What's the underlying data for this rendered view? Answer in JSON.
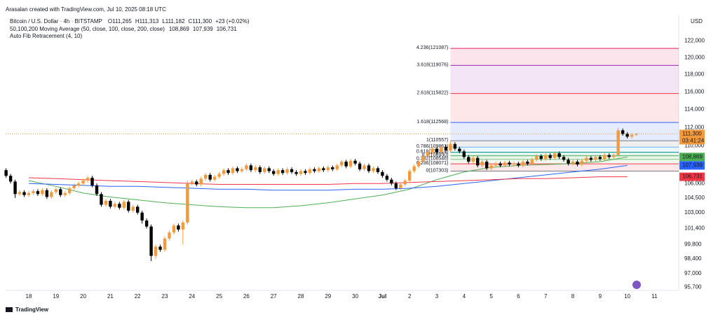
{
  "header": {
    "credit": "Arasalan created with TradingView.com, Jul 10, 2025 08:18 UTC",
    "symbol": "Bitcoin / U.S. Dollar · 4h · BITSTAMP",
    "ohlc": [
      "O111,265",
      "H111,313",
      "L111,182",
      "C111,300",
      "+23 (+0.02%)"
    ],
    "ma_legend": "50,100,200 Moving Average (50, close, 100, close, 200, close)",
    "fib_legend": "Auto Fib Retracement (4, 10)",
    "logo": "TradingView"
  },
  "chart_data": {
    "type": "candlestick",
    "currency": "USD",
    "log_scale": true,
    "grid": false,
    "up_color": "#f59a3b",
    "down_color": "#000000",
    "categories": [
      "18",
      "19",
      "20",
      "21",
      "22",
      "23",
      "24",
      "25",
      "26",
      "27",
      "28",
      "29",
      "30",
      "Jul",
      "2",
      "3",
      "4",
      "5",
      "6",
      "7",
      "8",
      "9",
      "10",
      "11"
    ],
    "ylim": [
      95400,
      125000
    ],
    "yticks": [
      {
        "value": 122000,
        "label": "122,000"
      },
      {
        "value": 120000,
        "label": "120,000"
      },
      {
        "value": 118000,
        "label": "118,000"
      },
      {
        "value": 116000,
        "label": "116,000"
      },
      {
        "value": 114000,
        "label": "114,000"
      },
      {
        "value": 112000,
        "label": "112,000"
      },
      {
        "value": 110000,
        "label": "110,000"
      },
      {
        "value": 106000,
        "label": "106,000"
      },
      {
        "value": 104500,
        "label": "104,500"
      },
      {
        "value": 103000,
        "label": "103,000"
      },
      {
        "value": 101400,
        "label": "101,400"
      },
      {
        "value": 99800,
        "label": "99,800"
      },
      {
        "value": 98400,
        "label": "98,400"
      },
      {
        "value": 97000,
        "label": "97,000"
      },
      {
        "value": 95700,
        "label": "95,700"
      }
    ],
    "last_price": {
      "value": 111300,
      "label": "111,300",
      "countdown": "03:41:24",
      "color": "#f59a3b"
    },
    "candles": {
      "open": [
        107400,
        106800,
        106200,
        104900,
        105100,
        104800,
        105000,
        105200,
        104900,
        105300,
        104600,
        105100,
        105400,
        104800,
        105000,
        105500,
        105800,
        106000,
        106300,
        106600,
        105800,
        104900,
        103800,
        104200,
        103600,
        103900,
        103500,
        104100,
        103200,
        103600,
        103000,
        102200,
        101600,
        98700,
        99600,
        99300,
        100400,
        101000,
        101700,
        101300,
        102000,
        106000,
        106200,
        105900,
        106500,
        106900,
        106400,
        106700,
        107000,
        107400,
        107100,
        107600,
        107300,
        107500,
        107900,
        107400,
        107700,
        107200,
        107600,
        107300,
        107000,
        107400,
        107100,
        107500,
        107200,
        107000,
        107300,
        107100,
        107500,
        107300,
        107600,
        107400,
        107700,
        107500,
        107900,
        108300,
        107800,
        108400,
        108100,
        107500,
        107900,
        107300,
        107600,
        107200,
        106800,
        106400,
        106000,
        105500,
        105900,
        106300,
        107300,
        107800,
        108300,
        108900,
        109300,
        109700,
        109300,
        109900,
        109500,
        110200,
        109700,
        109400,
        108800,
        108300,
        108700,
        107900,
        108300,
        107600,
        107900,
        108100,
        107900,
        108200,
        108000,
        108100,
        107900,
        108300,
        108100,
        108500,
        108900,
        108600,
        109000,
        108700,
        109200,
        108800,
        108500,
        108100,
        108300,
        108000,
        108400,
        108700,
        108500,
        108800,
        108600,
        109000,
        108800,
        109000,
        111700,
        111300,
        111000,
        111200
      ],
      "high": [
        107600,
        107000,
        106400,
        105300,
        105300,
        105200,
        105400,
        105400,
        105500,
        105500,
        105300,
        105600,
        105600,
        105200,
        105700,
        106000,
        106200,
        106500,
        106800,
        106800,
        106000,
        105100,
        104400,
        104400,
        104100,
        104100,
        104300,
        104300,
        103800,
        103800,
        103200,
        102400,
        101800,
        99800,
        99800,
        100600,
        101200,
        101900,
        101900,
        102200,
        106300,
        106400,
        106400,
        106700,
        107100,
        107100,
        106900,
        107200,
        107600,
        107600,
        107800,
        107800,
        107700,
        108100,
        108100,
        107900,
        107900,
        107800,
        107800,
        107500,
        107600,
        107600,
        107700,
        107700,
        107400,
        107500,
        107500,
        107700,
        107700,
        107800,
        107800,
        107900,
        107900,
        108100,
        108500,
        108500,
        108600,
        108600,
        108300,
        108100,
        108100,
        107800,
        107800,
        107400,
        107000,
        106600,
        106200,
        106100,
        106500,
        107500,
        108000,
        108500,
        109100,
        109500,
        109900,
        109900,
        110100,
        110100,
        110500,
        110400,
        109900,
        109600,
        109000,
        108900,
        108900,
        108500,
        108500,
        108100,
        108300,
        108300,
        108400,
        108400,
        108300,
        108300,
        108500,
        108500,
        108700,
        109100,
        109100,
        109200,
        109200,
        109400,
        109400,
        109000,
        108700,
        108500,
        108500,
        108600,
        108900,
        108900,
        109000,
        109000,
        109200,
        109200,
        109200,
        112000,
        111900,
        111500,
        111400,
        111400
      ],
      "low": [
        106600,
        106000,
        104500,
        104700,
        104600,
        104600,
        104800,
        104700,
        104700,
        104400,
        104400,
        104900,
        104600,
        104600,
        104800,
        105300,
        105600,
        105800,
        106100,
        105600,
        104700,
        103600,
        103600,
        103400,
        103400,
        103300,
        103300,
        103000,
        103000,
        102800,
        101900,
        101400,
        98200,
        98400,
        99100,
        99100,
        100200,
        100800,
        101100,
        99800,
        101800,
        105800,
        105700,
        105700,
        106300,
        106200,
        106200,
        106500,
        106800,
        106900,
        106900,
        107100,
        107100,
        107300,
        107200,
        107200,
        107000,
        107000,
        107100,
        106800,
        106800,
        106900,
        106900,
        107000,
        106800,
        106800,
        106900,
        106900,
        107100,
        107100,
        107200,
        107200,
        107300,
        107300,
        107700,
        107600,
        107600,
        107900,
        107300,
        107300,
        107100,
        107100,
        107000,
        106600,
        106200,
        105800,
        105300,
        105300,
        105700,
        106100,
        107100,
        107600,
        108100,
        108700,
        109100,
        109100,
        109100,
        109300,
        109300,
        109500,
        109200,
        108600,
        108100,
        108100,
        107700,
        107700,
        107400,
        107400,
        107700,
        107700,
        107700,
        107800,
        107800,
        107700,
        107700,
        107900,
        107900,
        108300,
        108400,
        108400,
        108500,
        108500,
        108600,
        108300,
        107900,
        107900,
        107800,
        107800,
        108200,
        108300,
        108300,
        108400,
        108400,
        108600,
        108600,
        108800,
        111100,
        110800,
        110800,
        111100
      ],
      "close": [
        106800,
        106200,
        104900,
        105100,
        104800,
        105000,
        105200,
        104900,
        105300,
        104600,
        105100,
        105400,
        104800,
        105000,
        105500,
        105800,
        106000,
        106300,
        106600,
        105800,
        104900,
        103800,
        104200,
        103600,
        103900,
        103500,
        104100,
        103200,
        103600,
        103000,
        102200,
        101600,
        98700,
        99600,
        99300,
        100400,
        101000,
        101700,
        101300,
        102000,
        106000,
        106200,
        105900,
        106500,
        106900,
        106400,
        106700,
        107000,
        107400,
        107100,
        107600,
        107300,
        107500,
        107900,
        107400,
        107700,
        107200,
        107600,
        107300,
        107000,
        107400,
        107100,
        107500,
        107200,
        107000,
        107300,
        107100,
        107500,
        107300,
        107600,
        107400,
        107700,
        107500,
        107900,
        108300,
        107800,
        108400,
        108100,
        107500,
        107900,
        107300,
        107600,
        107200,
        106800,
        106400,
        106000,
        105500,
        105900,
        106300,
        107300,
        107800,
        108300,
        108900,
        109300,
        109700,
        109300,
        109900,
        109500,
        110200,
        109700,
        109400,
        108800,
        108300,
        108700,
        107900,
        108300,
        107600,
        107900,
        108100,
        107900,
        108200,
        108000,
        108100,
        107900,
        108300,
        108100,
        108500,
        108900,
        108600,
        109000,
        108700,
        109200,
        108800,
        108500,
        108100,
        108300,
        108000,
        108400,
        108700,
        108500,
        108800,
        108600,
        109000,
        108800,
        109000,
        111700,
        111300,
        111000,
        111200,
        111300
      ]
    },
    "series": [
      {
        "name": "50",
        "color": "#4caf50",
        "last_label": "108,869",
        "values": [
          106300,
          105700,
          105000,
          104600,
          104300,
          104000,
          103800,
          103600,
          103500,
          103500,
          103700,
          104000,
          104400,
          104800,
          105400,
          106400,
          107200,
          107700,
          107900,
          108000,
          108100,
          108300,
          108800,
          null
        ]
      },
      {
        "name": "100",
        "color": "#2962ff",
        "last_label": "107,939",
        "values": [
          106000,
          105900,
          105800,
          105700,
          105700,
          105600,
          105500,
          105400,
          105400,
          105300,
          105300,
          105300,
          105400,
          105400,
          105500,
          105700,
          106000,
          106300,
          106600,
          106900,
          107200,
          107500,
          107900,
          null
        ]
      },
      {
        "name": "200",
        "color": "#f23645",
        "last_label": "106,731",
        "values": [
          106600,
          106500,
          106400,
          106300,
          106200,
          106100,
          106000,
          105900,
          105900,
          105900,
          105900,
          105900,
          106000,
          106000,
          106100,
          106200,
          106300,
          106400,
          106500,
          106500,
          106600,
          106700,
          106700,
          null
        ]
      }
    ],
    "fib": {
      "levels": [
        {
          "value": 121087,
          "label": "4.236(121087)",
          "color": "#e91e63"
        },
        {
          "value": 119076,
          "label": "3.618(119076)",
          "color": "#9c27b0"
        },
        {
          "value": 115822,
          "label": "2.618(115822)",
          "color": "#f23645"
        },
        {
          "value": 112568,
          "label": "1.618(112568)",
          "color": "#2962ff"
        },
        {
          "value": 110557,
          "label": "1(110557)",
          "color": "#787b86"
        },
        {
          "value": 109861,
          "label": "0.786(109861)",
          "color": "#64b5f6"
        },
        {
          "value": 109314,
          "label": "0.618(109314)",
          "color": "#089981"
        },
        {
          "value": 108930,
          "label": "0.5(108930)",
          "color": "#4caf50"
        },
        {
          "value": 108546,
          "label": "0.382(108546)",
          "color": "#81c784"
        },
        {
          "value": 108071,
          "label": "0.236(108071)",
          "color": "#f23645"
        },
        {
          "value": 107303,
          "label": "0(107303)",
          "color": "#787b86"
        }
      ]
    }
  }
}
